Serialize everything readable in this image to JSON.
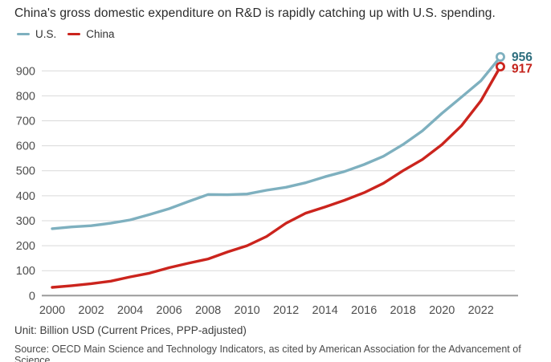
{
  "title": "China's gross domestic expenditure on R&D is rapidly catching up with U.S. spending.",
  "legend": {
    "items": [
      {
        "label": "U.S.",
        "color": "#7eb0bf"
      },
      {
        "label": "China",
        "color": "#cb241d"
      }
    ]
  },
  "footer": {
    "unit": "Unit: Billion USD (Current Prices, PPP-adjusted)",
    "source": "Source: OECD Main Science and Technology Indicators, as cited by American Association for the Advancement of Science."
  },
  "chart_data": {
    "type": "line",
    "title": "China's gross domestic expenditure on R&D is rapidly catching up with U.S. spending.",
    "xlabel": "",
    "ylabel": "Billion USD (Current Prices, PPP-adjusted)",
    "x": [
      2000,
      2001,
      2002,
      2003,
      2004,
      2005,
      2006,
      2007,
      2008,
      2009,
      2010,
      2011,
      2012,
      2013,
      2014,
      2015,
      2016,
      2017,
      2018,
      2019,
      2020,
      2021,
      2022,
      2023
    ],
    "series": [
      {
        "name": "U.S.",
        "color": "#7eb0bf",
        "end_label": "956",
        "end_label_color": "#2e6e7e",
        "values": [
          268,
          275,
          280,
          290,
          303,
          325,
          348,
          377,
          405,
          404,
          407,
          422,
          434,
          452,
          476,
          497,
          525,
          558,
          605,
          660,
          730,
          795,
          860,
          956
        ]
      },
      {
        "name": "China",
        "color": "#cb241d",
        "end_label": "917",
        "end_label_color": "#c4231c",
        "values": [
          33,
          40,
          48,
          58,
          75,
          90,
          112,
          130,
          147,
          175,
          200,
          237,
          290,
          330,
          355,
          382,
          412,
          450,
          500,
          545,
          605,
          680,
          780,
          917
        ]
      }
    ],
    "xticks": [
      2000,
      2002,
      2004,
      2006,
      2008,
      2010,
      2012,
      2014,
      2016,
      2018,
      2020,
      2022
    ],
    "yticks": [
      0,
      100,
      200,
      300,
      400,
      500,
      600,
      700,
      800,
      900
    ],
    "xlim": [
      2000,
      2023
    ],
    "ylim": [
      0,
      956
    ],
    "grid": "horizontal",
    "legend_position": "top-left",
    "colors": {
      "gridline": "#d9d9d9",
      "baseline": "#9b9b9b",
      "tick_label": "#4f4f4f"
    }
  }
}
